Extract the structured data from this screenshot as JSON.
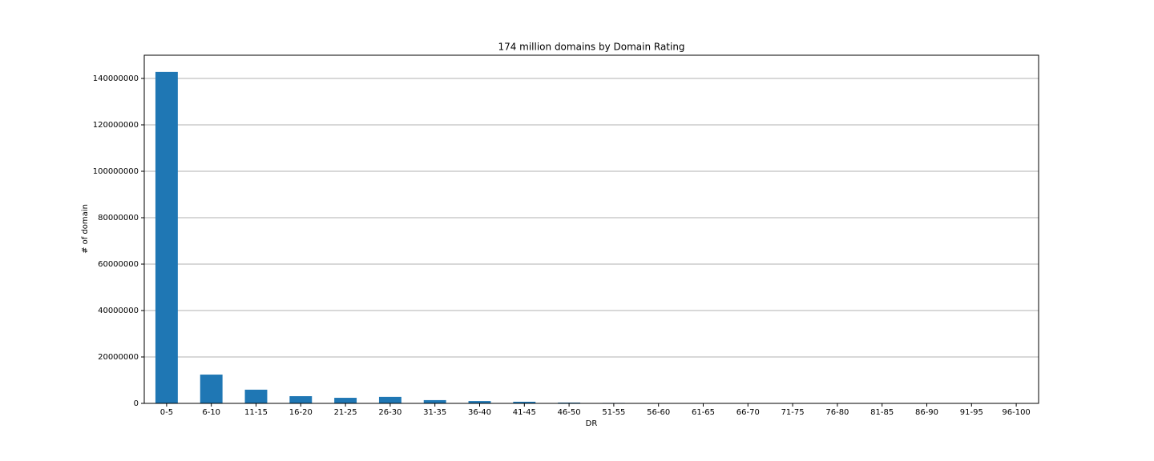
{
  "chart_data": {
    "type": "bar",
    "title": "174 million domains by Domain Rating",
    "x_label": "DR",
    "y_label": "# of domain",
    "categories": [
      "0-5",
      "6-10",
      "11-15",
      "16-20",
      "21-25",
      "26-30",
      "31-35",
      "36-40",
      "41-45",
      "46-50",
      "51-55",
      "56-60",
      "61-65",
      "66-70",
      "71-75",
      "76-80",
      "81-85",
      "86-90",
      "91-95",
      "96-100"
    ],
    "values": [
      142800000,
      12400000,
      5900000,
      3100000,
      2400000,
      2800000,
      1400000,
      1000000,
      700000,
      350000,
      200000,
      80000,
      50000,
      30000,
      20000,
      10000,
      8000,
      5000,
      3000,
      1000
    ],
    "color": "#1f77b4",
    "ylim": [
      0,
      150000000
    ],
    "yticks": [
      0,
      20000000,
      40000000,
      60000000,
      80000000,
      100000000,
      120000000,
      140000000
    ],
    "grid": true
  }
}
